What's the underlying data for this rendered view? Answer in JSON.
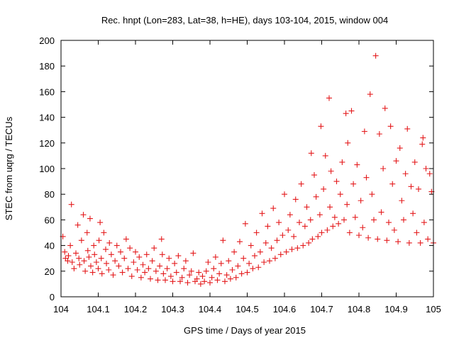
{
  "chart_data": {
    "type": "scatter",
    "title": "Rec. hnpt (Lon=283, Lat=38, h=HE), days 103-104, 2015, window 004",
    "xlabel": "GPS time / Days of year 2015",
    "ylabel": "STEC from uqrg / TECUs",
    "xlim": [
      104,
      105
    ],
    "ylim": [
      0,
      200
    ],
    "x_ticks": [
      "104",
      "104.1",
      "104.2",
      "104.3",
      "104.4",
      "104.5",
      "104.6",
      "104.7",
      "104.8",
      "104.9",
      "105"
    ],
    "y_ticks": [
      "0",
      "20",
      "40",
      "60",
      "80",
      "100",
      "120",
      "140",
      "160",
      "180",
      "200"
    ],
    "marker": "plus",
    "color": "#e41a1c",
    "grid": false,
    "series": [
      {
        "points": [
          [
            104.005,
            47
          ],
          [
            104.01,
            35
          ],
          [
            104.012,
            30
          ],
          [
            104.018,
            28
          ],
          [
            104.02,
            32
          ],
          [
            104.025,
            40
          ],
          [
            104.028,
            72
          ],
          [
            104.03,
            27
          ],
          [
            104.035,
            22
          ],
          [
            104.04,
            34
          ],
          [
            104.045,
            56
          ],
          [
            104.048,
            30
          ],
          [
            104.05,
            25
          ],
          [
            104.055,
            44
          ],
          [
            104.06,
            64
          ],
          [
            104.062,
            28
          ],
          [
            104.065,
            20
          ],
          [
            104.07,
            50
          ],
          [
            104.072,
            36
          ],
          [
            104.075,
            31
          ],
          [
            104.078,
            61
          ],
          [
            104.08,
            24
          ],
          [
            104.085,
            19
          ],
          [
            104.088,
            40
          ],
          [
            104.09,
            33
          ],
          [
            104.095,
            27
          ],
          [
            104.1,
            22
          ],
          [
            104.102,
            44
          ],
          [
            104.105,
            58
          ],
          [
            104.108,
            30
          ],
          [
            104.11,
            18
          ],
          [
            104.115,
            50
          ],
          [
            104.12,
            37
          ],
          [
            104.122,
            26
          ],
          [
            104.128,
            21
          ],
          [
            104.13,
            42
          ],
          [
            104.135,
            33
          ],
          [
            104.14,
            17
          ],
          [
            104.145,
            28
          ],
          [
            104.15,
            40
          ],
          [
            104.155,
            24
          ],
          [
            104.16,
            35
          ],
          [
            104.165,
            19
          ],
          [
            104.17,
            30
          ],
          [
            104.175,
            45
          ],
          [
            104.18,
            22
          ],
          [
            104.185,
            38
          ],
          [
            104.19,
            16
          ],
          [
            104.195,
            27
          ],
          [
            104.2,
            35
          ],
          [
            104.205,
            21
          ],
          [
            104.21,
            31
          ],
          [
            104.215,
            15
          ],
          [
            104.22,
            25
          ],
          [
            104.225,
            19
          ],
          [
            104.23,
            33
          ],
          [
            104.235,
            22
          ],
          [
            104.24,
            14
          ],
          [
            104.245,
            28
          ],
          [
            104.25,
            38
          ],
          [
            104.255,
            20
          ],
          [
            104.26,
            13
          ],
          [
            104.265,
            24
          ],
          [
            104.27,
            45
          ],
          [
            104.272,
            33
          ],
          [
            104.275,
            18
          ],
          [
            104.28,
            13
          ],
          [
            104.285,
            22
          ],
          [
            104.29,
            30
          ],
          [
            104.295,
            16
          ],
          [
            104.3,
            12
          ],
          [
            104.305,
            26
          ],
          [
            104.31,
            19
          ],
          [
            104.315,
            32
          ],
          [
            104.32,
            12
          ],
          [
            104.325,
            15
          ],
          [
            104.33,
            22
          ],
          [
            104.335,
            28
          ],
          [
            104.34,
            11
          ],
          [
            104.345,
            17
          ],
          [
            104.35,
            20
          ],
          [
            104.355,
            34
          ],
          [
            104.36,
            12
          ],
          [
            104.365,
            14
          ],
          [
            104.37,
            19
          ],
          [
            104.375,
            10
          ],
          [
            104.38,
            16
          ],
          [
            104.385,
            12
          ],
          [
            104.39,
            20
          ],
          [
            104.395,
            27
          ],
          [
            104.4,
            11
          ],
          [
            104.405,
            15
          ],
          [
            104.41,
            22
          ],
          [
            104.415,
            31
          ],
          [
            104.42,
            13
          ],
          [
            104.425,
            18
          ],
          [
            104.43,
            26
          ],
          [
            104.435,
            44
          ],
          [
            104.44,
            12
          ],
          [
            104.445,
            17
          ],
          [
            104.45,
            28
          ],
          [
            104.455,
            14
          ],
          [
            104.46,
            21
          ],
          [
            104.465,
            35
          ],
          [
            104.47,
            15
          ],
          [
            104.475,
            24
          ],
          [
            104.48,
            43
          ],
          [
            104.485,
            18
          ],
          [
            104.49,
            30
          ],
          [
            104.495,
            57
          ],
          [
            104.5,
            19
          ],
          [
            104.505,
            26
          ],
          [
            104.51,
            40
          ],
          [
            104.515,
            22
          ],
          [
            104.52,
            32
          ],
          [
            104.525,
            50
          ],
          [
            104.53,
            23
          ],
          [
            104.535,
            35
          ],
          [
            104.54,
            65
          ],
          [
            104.545,
            27
          ],
          [
            104.55,
            42
          ],
          [
            104.555,
            55
          ],
          [
            104.56,
            28
          ],
          [
            104.565,
            38
          ],
          [
            104.57,
            69
          ],
          [
            104.575,
            30
          ],
          [
            104.58,
            44
          ],
          [
            104.585,
            58
          ],
          [
            104.59,
            33
          ],
          [
            104.595,
            48
          ],
          [
            104.6,
            80
          ],
          [
            104.605,
            35
          ],
          [
            104.61,
            52
          ],
          [
            104.615,
            64
          ],
          [
            104.62,
            37
          ],
          [
            104.625,
            47
          ],
          [
            104.63,
            76
          ],
          [
            104.635,
            38
          ],
          [
            104.64,
            58
          ],
          [
            104.645,
            88
          ],
          [
            104.65,
            40
          ],
          [
            104.655,
            55
          ],
          [
            104.66,
            70
          ],
          [
            104.665,
            42
          ],
          [
            104.67,
            60
          ],
          [
            104.672,
            112
          ],
          [
            104.675,
            45
          ],
          [
            104.68,
            95
          ],
          [
            104.685,
            78
          ],
          [
            104.69,
            47
          ],
          [
            104.695,
            64
          ],
          [
            104.698,
            133
          ],
          [
            104.7,
            50
          ],
          [
            104.705,
            84
          ],
          [
            104.71,
            110
          ],
          [
            104.715,
            52
          ],
          [
            104.72,
            155
          ],
          [
            104.722,
            70
          ],
          [
            104.725,
            98
          ],
          [
            104.73,
            55
          ],
          [
            104.735,
            62
          ],
          [
            104.74,
            90
          ],
          [
            104.745,
            57
          ],
          [
            104.75,
            80
          ],
          [
            104.755,
            105
          ],
          [
            104.76,
            60
          ],
          [
            104.765,
            143
          ],
          [
            104.768,
            72
          ],
          [
            104.77,
            120
          ],
          [
            104.775,
            50
          ],
          [
            104.78,
            145
          ],
          [
            104.785,
            88
          ],
          [
            104.79,
            62
          ],
          [
            104.795,
            103
          ],
          [
            104.8,
            48
          ],
          [
            104.805,
            75
          ],
          [
            104.81,
            54
          ],
          [
            104.815,
            129
          ],
          [
            104.82,
            93
          ],
          [
            104.825,
            46
          ],
          [
            104.83,
            158
          ],
          [
            104.835,
            80
          ],
          [
            104.84,
            60
          ],
          [
            104.845,
            188
          ],
          [
            104.85,
            45
          ],
          [
            104.855,
            127
          ],
          [
            104.86,
            66
          ],
          [
            104.865,
            100
          ],
          [
            104.87,
            147
          ],
          [
            104.875,
            44
          ],
          [
            104.88,
            58
          ],
          [
            104.885,
            133
          ],
          [
            104.89,
            88
          ],
          [
            104.895,
            52
          ],
          [
            104.9,
            106
          ],
          [
            104.905,
            43
          ],
          [
            104.91,
            116
          ],
          [
            104.915,
            75
          ],
          [
            104.92,
            60
          ],
          [
            104.925,
            96
          ],
          [
            104.93,
            131
          ],
          [
            104.935,
            42
          ],
          [
            104.94,
            86
          ],
          [
            104.945,
            65
          ],
          [
            104.95,
            105
          ],
          [
            104.955,
            50
          ],
          [
            104.96,
            84
          ],
          [
            104.965,
            42
          ],
          [
            104.97,
            119
          ],
          [
            104.972,
            124
          ],
          [
            104.975,
            58
          ],
          [
            104.98,
            100
          ],
          [
            104.985,
            45
          ],
          [
            104.99,
            96
          ],
          [
            104.995,
            82
          ],
          [
            105.0,
            42
          ]
        ]
      }
    ]
  }
}
